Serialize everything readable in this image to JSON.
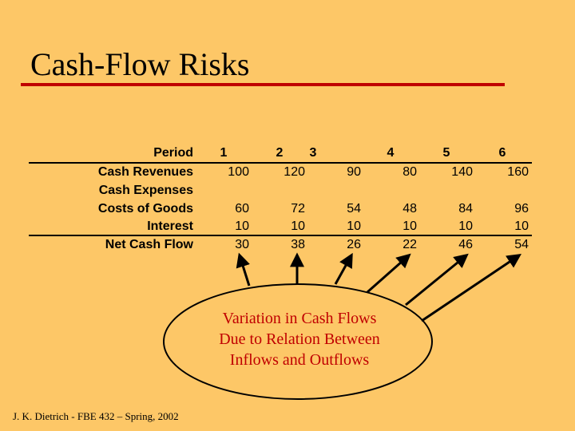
{
  "slide": {
    "title": "Cash-Flow Risks",
    "footer": "J. K. Dietrich - FBE 432 – Spring, 2002",
    "bubble_lines": [
      "Variation in Cash Flows",
      "Due to Relation Between",
      "Inflows and Outflows"
    ],
    "colors": {
      "background": "#fdc767",
      "accent": "#c00000",
      "text": "#000000"
    }
  },
  "table": {
    "header_label": "Period",
    "periods": [
      "1",
      "2",
      "3",
      "4",
      "5",
      "6"
    ],
    "rows": [
      {
        "label": "Cash Revenues",
        "values": [
          "100",
          "120",
          "90",
          "80",
          "140",
          "160"
        ]
      },
      {
        "label": "Cash Expenses",
        "values": [
          "",
          "",
          "",
          "",
          "",
          ""
        ]
      },
      {
        "label": "Costs of Goods",
        "values": [
          "60",
          "72",
          "54",
          "48",
          "84",
          "96"
        ]
      },
      {
        "label": "Interest",
        "values": [
          "10",
          "10",
          "10",
          "10",
          "10",
          "10"
        ]
      },
      {
        "label": "Net Cash Flow",
        "values": [
          "30",
          "38",
          "26",
          "22",
          "46",
          "54"
        ]
      }
    ]
  }
}
